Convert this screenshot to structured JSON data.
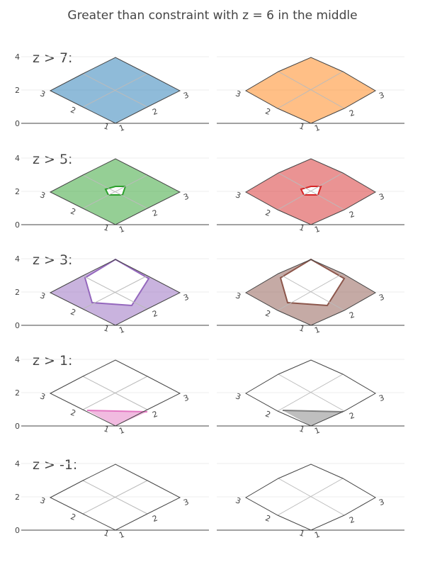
{
  "title": "Greater than constraint with z = 6 in the middle",
  "colors": {
    "blue": "#1f77b4",
    "orange": "#ff7f0e",
    "green": "#2ca02c",
    "red": "#d62728",
    "purple": "#9467bd",
    "brown": "#8c564b",
    "pink": "#e377c2",
    "gray": "#7f7f7f"
  },
  "chart_data": {
    "type": "carpet-contour",
    "a": [
      1,
      2,
      3
    ],
    "b": [
      1,
      2,
      3
    ],
    "z_grid": [
      [
        2,
        2,
        2
      ],
      [
        2,
        6,
        2
      ],
      [
        2,
        2,
        2
      ]
    ],
    "yaxis": {
      "ticks": [
        "0",
        "2",
        "4"
      ],
      "range": [
        0,
        4
      ]
    },
    "carpet_ticks": {
      "a_labels": [
        "1",
        "2",
        "3"
      ],
      "b_labels": [
        "1",
        "2",
        "3"
      ]
    },
    "rows": [
      {
        "label": "z > 7:",
        "threshold": 7,
        "left_color": "blue",
        "right_color": "orange"
      },
      {
        "label": "z > 5:",
        "threshold": 5,
        "left_color": "green",
        "right_color": "red"
      },
      {
        "label": "z > 3:",
        "threshold": 3,
        "left_color": "purple",
        "right_color": "brown"
      },
      {
        "label": "z > 1:",
        "threshold": 1,
        "left_color": "pink",
        "right_color": "gray"
      },
      {
        "label": "z > -1:",
        "threshold": -1,
        "left_color": "none",
        "right_color": "none"
      }
    ],
    "columns": [
      "linear",
      "smoothed"
    ]
  }
}
